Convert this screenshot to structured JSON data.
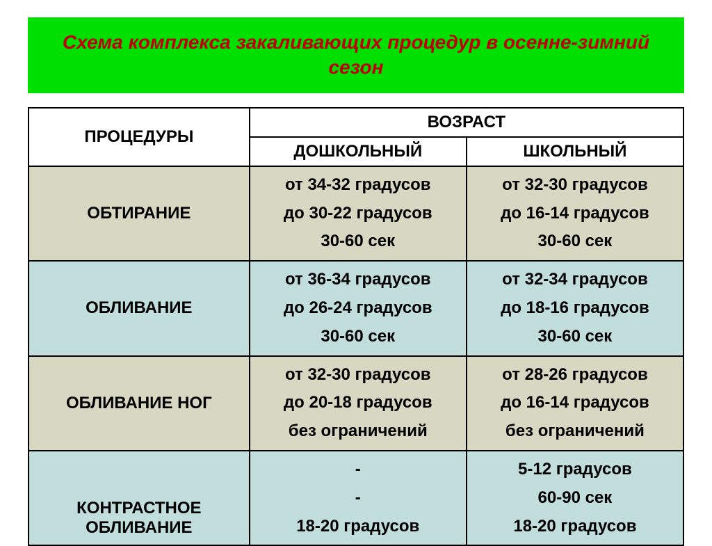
{
  "colors": {
    "title_bg": "#00e000",
    "title_text": "#c00000",
    "row_alt_a": "#d6d8c2",
    "row_alt_b": "#c2dedc",
    "header_bg": "#ffffff",
    "border": "#000000",
    "text": "#000000"
  },
  "title": "Схема комплекса закаливающих процедур в осенне-зимний сезон",
  "table": {
    "header": {
      "procedures": "ПРОЦЕДУРЫ",
      "age": "ВОЗРАСТ",
      "preschool": "ДОШКОЛЬНЫЙ",
      "school": "ШКОЛЬНЫЙ"
    },
    "rows": [
      {
        "label": "ОБТИРАНИЕ",
        "preschool": [
          "от 34-32 градусов",
          "до 30-22 градусов",
          "30-60 сек"
        ],
        "school": [
          "от 32-30 градусов",
          "до 16-14 градусов",
          "30-60 сек"
        ],
        "bg_key": "row_alt_a"
      },
      {
        "label": "ОБЛИВАНИЕ",
        "preschool": [
          "от 36-34 градусов",
          "до 26-24 градусов",
          "30-60 сек"
        ],
        "school": [
          "от 32-34 градусов",
          "до 18-16 градусов",
          "30-60 сек"
        ],
        "bg_key": "row_alt_b"
      },
      {
        "label": "ОБЛИВАНИЕ НОГ",
        "preschool": [
          "от 32-30 градусов",
          "до 20-18 градусов",
          "без ограничений"
        ],
        "school": [
          "от 28-26 градусов",
          "до 16-14 градусов",
          "без ограничений"
        ],
        "bg_key": "row_alt_a"
      },
      {
        "label": "КОНТРАСТНОЕ ОБЛИВАНИЕ",
        "preschool": [
          "-",
          "-",
          "18-20 градусов"
        ],
        "school": [
          "5-12 градусов",
          "60-90 сек",
          "18-20 градусов"
        ],
        "bg_key": "row_alt_b"
      }
    ]
  }
}
